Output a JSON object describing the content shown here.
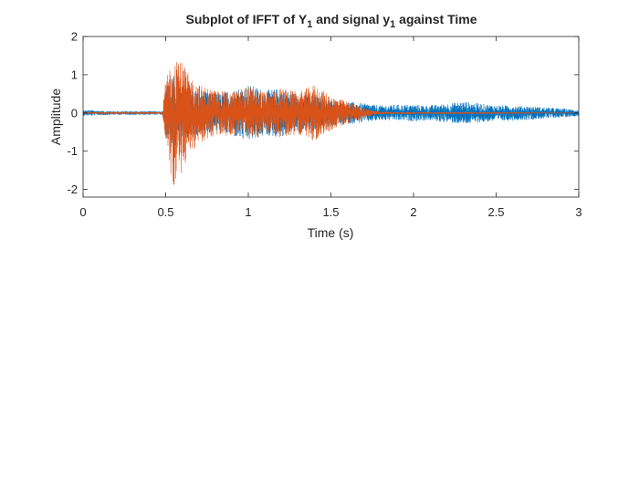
{
  "chart_data": {
    "type": "line",
    "title": "Subplot of IFFT of Y",
    "title_sub1": "1",
    "title_mid": " and signal y",
    "title_sub2": "1",
    "title_end": " against Time",
    "xlabel": "Time (s)",
    "ylabel": "Amplitude",
    "xlim": [
      0,
      3
    ],
    "ylim": [
      -2.2,
      2
    ],
    "xticks": [
      0,
      0.5,
      1,
      1.5,
      2,
      2.5,
      3
    ],
    "xtick_labels": [
      "0",
      "0.5",
      "1",
      "1.5",
      "2",
      "2.5",
      "3"
    ],
    "yticks": [
      -2,
      -1,
      0,
      1,
      2
    ],
    "ytick_labels": [
      "-2",
      "-1",
      "0",
      "1",
      "2"
    ],
    "grid": false,
    "legend": "none",
    "series": [
      {
        "color": "#0072BD",
        "envelope": {
          "t": [
            0,
            0.05,
            0.1,
            0.2,
            0.3,
            0.4,
            0.48,
            0.5,
            0.55,
            0.6,
            0.7,
            0.8,
            0.9,
            1.0,
            1.1,
            1.2,
            1.3,
            1.4,
            1.5,
            1.6,
            1.7,
            1.8,
            1.9,
            2.0,
            2.1,
            2.2,
            2.3,
            2.4,
            2.5,
            2.6,
            2.7,
            2.8,
            2.9,
            3.0
          ],
          "upper": [
            0.07,
            0.08,
            0.06,
            0.05,
            0.05,
            0.05,
            0.05,
            0.6,
            1.0,
            0.7,
            0.6,
            0.5,
            0.6,
            0.75,
            0.6,
            0.65,
            0.5,
            0.45,
            0.35,
            0.3,
            0.25,
            0.2,
            0.22,
            0.22,
            0.2,
            0.25,
            0.3,
            0.25,
            0.2,
            0.2,
            0.18,
            0.15,
            0.12,
            0.08
          ],
          "lower": [
            -0.07,
            -0.08,
            -0.06,
            -0.05,
            -0.05,
            -0.05,
            -0.05,
            -0.6,
            -1.0,
            -0.7,
            -0.6,
            -0.5,
            -0.6,
            -0.75,
            -0.6,
            -0.65,
            -0.5,
            -0.45,
            -0.35,
            -0.3,
            -0.25,
            -0.2,
            -0.2,
            -0.22,
            -0.2,
            -0.25,
            -0.3,
            -0.25,
            -0.22,
            -0.2,
            -0.18,
            -0.15,
            -0.12,
            -0.08
          ]
        }
      },
      {
        "color": "#D95319",
        "envelope": {
          "t": [
            0,
            0.1,
            0.2,
            0.3,
            0.4,
            0.48,
            0.5,
            0.53,
            0.56,
            0.6,
            0.65,
            0.7,
            0.8,
            0.9,
            1.0,
            1.1,
            1.2,
            1.3,
            1.4,
            1.5,
            1.6,
            1.7,
            1.75,
            1.8,
            1.9,
            2.0,
            2.5,
            3.0
          ],
          "upper": [
            0.02,
            0.02,
            0.02,
            0.02,
            0.02,
            0.02,
            0.9,
            1.4,
            1.75,
            1.3,
            0.95,
            0.75,
            0.6,
            0.55,
            0.7,
            0.55,
            0.65,
            0.55,
            0.75,
            0.45,
            0.3,
            0.15,
            0.08,
            0.04,
            0.02,
            0.01,
            0.01,
            0.0
          ],
          "lower": [
            -0.02,
            -0.02,
            -0.02,
            -0.02,
            -0.02,
            -0.02,
            -0.9,
            -1.6,
            -2.15,
            -1.5,
            -1.1,
            -0.8,
            -0.6,
            -0.6,
            -0.75,
            -0.55,
            -0.65,
            -0.55,
            -0.75,
            -0.45,
            -0.3,
            -0.15,
            -0.08,
            -0.04,
            -0.02,
            -0.01,
            -0.01,
            0.0
          ]
        }
      }
    ]
  }
}
